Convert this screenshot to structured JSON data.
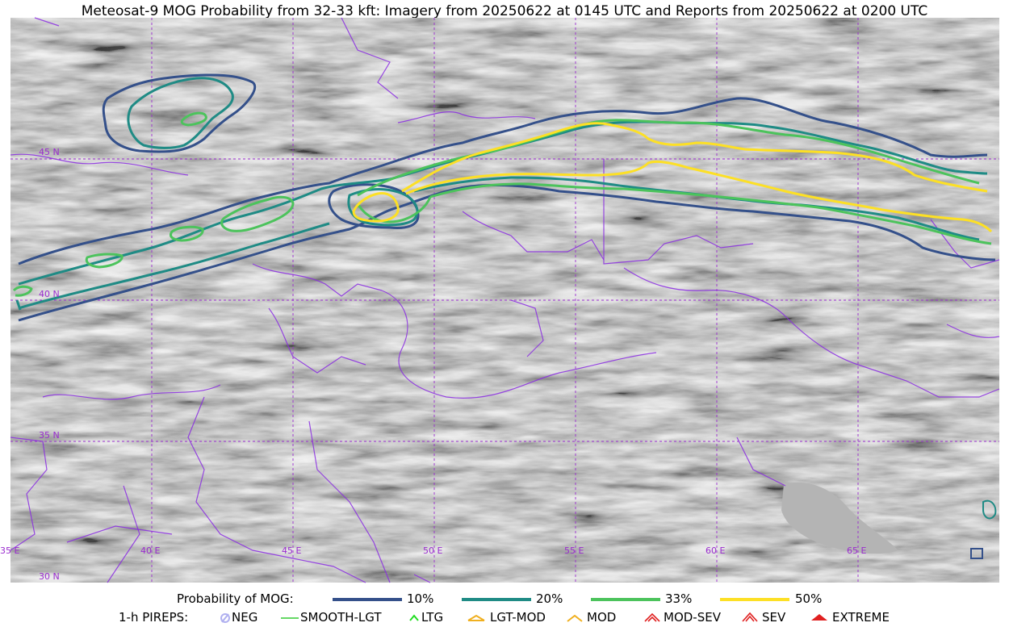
{
  "title": "Meteosat-9 MOG Probability from 32-33 kft: Imagery from 20250622 at 0145 UTC and Reports from 20250622 at 0200 UTC",
  "map": {
    "lat_labels": [
      "45 N",
      "40 N",
      "35 N",
      "30 N"
    ],
    "lon_labels": [
      "35 E",
      "40 E",
      "45 E",
      "50 E",
      "55 E",
      "60 E",
      "65 E"
    ],
    "grid_color": "#9a2ccf",
    "border_color": "#8a2be2"
  },
  "legend": {
    "probability_title": "Probability of MOG:",
    "probability": [
      {
        "label": "10%",
        "color": "#34508a"
      },
      {
        "label": "20%",
        "color": "#1f8b85"
      },
      {
        "label": "33%",
        "color": "#4cc35c"
      },
      {
        "label": "50%",
        "color": "#fde025"
      }
    ],
    "pireps_title": "1-h PIREPS:",
    "pireps": [
      {
        "label": "NEG",
        "icon": "neg-icon",
        "color": "#b0b0f0"
      },
      {
        "label": "SMOOTH-LGT",
        "icon": "smooth-lgt-icon",
        "color": "#33cc33"
      },
      {
        "label": "LTG",
        "icon": "ltg-icon",
        "color": "#22dd22"
      },
      {
        "label": "LGT-MOD",
        "icon": "lgt-mod-icon",
        "color": "#f0b020"
      },
      {
        "label": "MOD",
        "icon": "mod-icon",
        "color": "#f0b020"
      },
      {
        "label": "MOD-SEV",
        "icon": "mod-sev-icon",
        "color": "#e02020"
      },
      {
        "label": "SEV",
        "icon": "sev-icon",
        "color": "#e02020"
      },
      {
        "label": "EXTREME",
        "icon": "extreme-icon",
        "color": "#e02020"
      }
    ]
  }
}
